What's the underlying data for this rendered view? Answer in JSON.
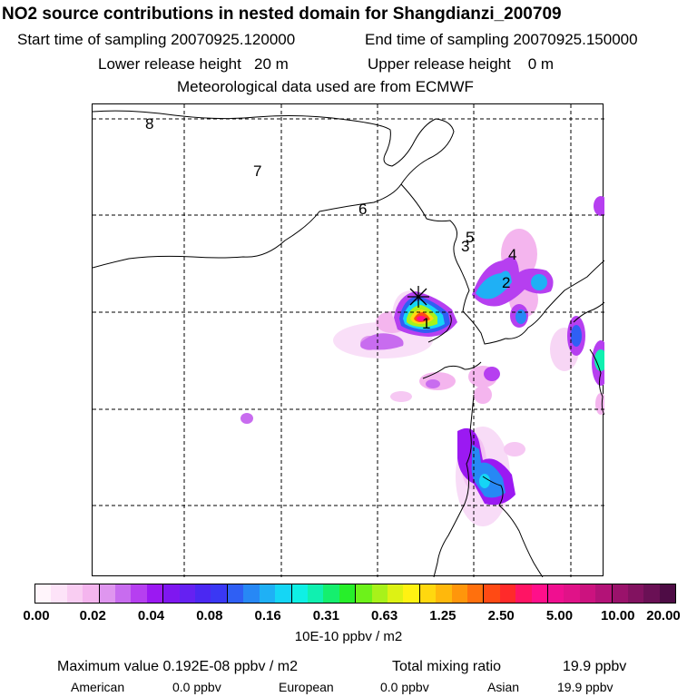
{
  "header": {
    "title": "NO2 source contributions in nested domain for Shangdianzi_200709",
    "start_label": "Start time of sampling 20070925.120000",
    "end_label": "End time of sampling 20070925.150000",
    "lower_label": "Lower release height   20 m",
    "upper_label": "Upper release height    0 m",
    "met_label": "Meteorological data used are from ECMWF"
  },
  "map": {
    "trajectory_labels": [
      "1",
      "2",
      "3",
      "4",
      "5",
      "6",
      "7",
      "8"
    ],
    "site_marker": "asterisk"
  },
  "colorbar": {
    "tick_labels": [
      "0.00",
      "0.02",
      "0.04",
      "0.08",
      "0.16",
      "0.31",
      "0.63",
      "1.25",
      "2.50",
      "5.00",
      "10.00",
      "20.00"
    ],
    "units": "10E-10 ppbv / m2",
    "colors": [
      "#fff5fb",
      "#fde3f8",
      "#f9cdf2",
      "#f4b5ee",
      "#df96ef",
      "#c86cef",
      "#b63ff0",
      "#9b19f2",
      "#7f17f0",
      "#6521f2",
      "#4b28f2",
      "#3a38f4",
      "#2f5ff4",
      "#2788f5",
      "#1fb0f5",
      "#15d6f5",
      "#0ff0e5",
      "#10f0b0",
      "#15ef6e",
      "#27ef2a",
      "#6df21a",
      "#a8f21a",
      "#ddf214",
      "#fff212",
      "#ffd80f",
      "#ffb80c",
      "#ff960b",
      "#ff700d",
      "#ff4a14",
      "#ff2a2a",
      "#ff1464",
      "#ff0f8a",
      "#f00f90",
      "#e01288",
      "#cc127f",
      "#b31277",
      "#9a126b",
      "#821260",
      "#6a1055",
      "#4e0c45"
    ]
  },
  "footer": {
    "max_label": "Maximum value  0.192E-08 ppbv / m2",
    "total_label": "Total mixing ratio",
    "total_value": "19.9 ppbv",
    "american_label": "American",
    "american_value": "0.0 ppbv",
    "european_label": "European",
    "european_value": "0.0 ppbv",
    "asian_label": "Asian",
    "asian_value": "19.9 ppbv"
  }
}
